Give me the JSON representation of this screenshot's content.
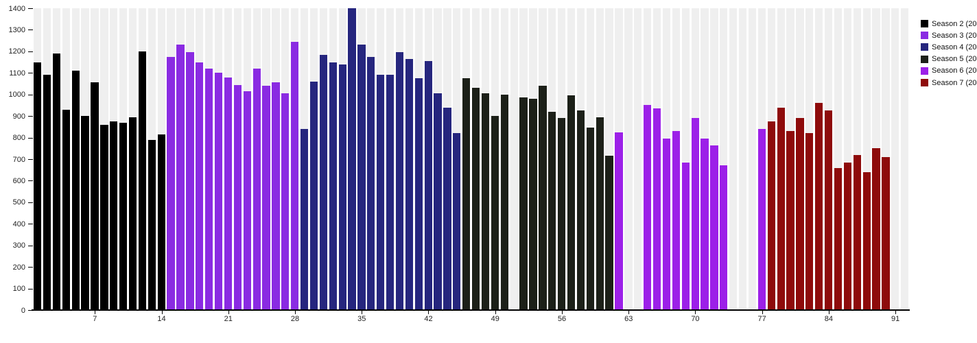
{
  "chart_data": {
    "type": "bar",
    "title": "",
    "xlabel": "",
    "ylabel": "",
    "ylim": [
      0,
      1400
    ],
    "ytick_step": 100,
    "xticks": [
      7,
      14,
      21,
      28,
      35,
      42,
      49,
      56,
      63,
      70,
      77,
      84,
      91
    ],
    "x_slot_count": 92,
    "grid": "off",
    "background_slot_stripes": true,
    "legend_position": "outside-top-right",
    "series": [
      {
        "name": "Season 2 (20",
        "color": "#000000",
        "points": [
          [
            1,
            1150
          ],
          [
            2,
            1090
          ],
          [
            3,
            1190
          ],
          [
            4,
            930
          ],
          [
            5,
            1110
          ],
          [
            6,
            900
          ],
          [
            7,
            1055
          ],
          [
            8,
            860
          ],
          [
            9,
            875
          ],
          [
            10,
            870
          ],
          [
            11,
            895
          ],
          [
            12,
            1200
          ],
          [
            13,
            790
          ],
          [
            14,
            815
          ]
        ]
      },
      {
        "name": "Season 3 (20",
        "color": "#8a2be2",
        "points": [
          [
            15,
            1175
          ],
          [
            16,
            1230
          ],
          [
            17,
            1195
          ],
          [
            18,
            1150
          ],
          [
            19,
            1120
          ],
          [
            20,
            1100
          ],
          [
            21,
            1080
          ],
          [
            22,
            1045
          ],
          [
            23,
            1015
          ],
          [
            24,
            1120
          ],
          [
            25,
            1040
          ],
          [
            26,
            1055
          ],
          [
            27,
            1005
          ],
          [
            28,
            1245
          ]
        ]
      },
      {
        "name": "Season 4 (20",
        "color": "#26267e",
        "points": [
          [
            29,
            840
          ],
          [
            30,
            1060
          ],
          [
            31,
            1185
          ],
          [
            32,
            1150
          ],
          [
            33,
            1140
          ],
          [
            34,
            1405
          ],
          [
            35,
            1230
          ],
          [
            36,
            1175
          ],
          [
            37,
            1090
          ],
          [
            38,
            1090
          ],
          [
            39,
            1195
          ],
          [
            40,
            1165
          ],
          [
            41,
            1075
          ],
          [
            42,
            1155
          ],
          [
            43,
            1005
          ],
          [
            44,
            940
          ],
          [
            45,
            820
          ]
        ]
      },
      {
        "name": "Season 5 (20",
        "color": "#1c2018",
        "points": [
          [
            46,
            1075
          ],
          [
            47,
            1030
          ],
          [
            48,
            1005
          ],
          [
            49,
            900
          ],
          [
            50,
            1000
          ],
          [
            52,
            985
          ],
          [
            53,
            980
          ],
          [
            54,
            1040
          ],
          [
            55,
            920
          ],
          [
            56,
            890
          ],
          [
            57,
            995
          ],
          [
            58,
            925
          ],
          [
            59,
            845
          ],
          [
            60,
            895
          ],
          [
            61,
            715
          ]
        ]
      },
      {
        "name": "Season 6 (20",
        "color": "#9c20e8",
        "points": [
          [
            62,
            825
          ],
          [
            65,
            950
          ],
          [
            66,
            935
          ],
          [
            67,
            795
          ],
          [
            68,
            830
          ],
          [
            69,
            685
          ],
          [
            70,
            890
          ],
          [
            71,
            795
          ],
          [
            72,
            765
          ],
          [
            73,
            670
          ],
          [
            77,
            840
          ]
        ]
      },
      {
        "name": "Season 7 (20",
        "color": "#8e0b0b",
        "points": [
          [
            78,
            875
          ],
          [
            79,
            940
          ],
          [
            80,
            830
          ],
          [
            81,
            890
          ],
          [
            82,
            820
          ],
          [
            83,
            960
          ],
          [
            84,
            925
          ],
          [
            85,
            660
          ],
          [
            86,
            685
          ],
          [
            87,
            720
          ],
          [
            88,
            640
          ],
          [
            89,
            750
          ],
          [
            90,
            710
          ]
        ]
      }
    ],
    "y_tick_labels": [
      "0",
      "100",
      "200",
      "300",
      "400",
      "500",
      "600",
      "700",
      "800",
      "900",
      "1000",
      "1100",
      "1200",
      "1300",
      "1400"
    ]
  },
  "legend": {
    "items": [
      {
        "label": "Season 2 (20",
        "color": "#000000"
      },
      {
        "label": "Season 3 (20",
        "color": "#8a2be2"
      },
      {
        "label": "Season 4 (20",
        "color": "#26267e"
      },
      {
        "label": "Season 5 (20",
        "color": "#1c2018"
      },
      {
        "label": "Season 6 (20",
        "color": "#9c20e8"
      },
      {
        "label": "Season 7 (20",
        "color": "#8e0b0b"
      }
    ]
  }
}
